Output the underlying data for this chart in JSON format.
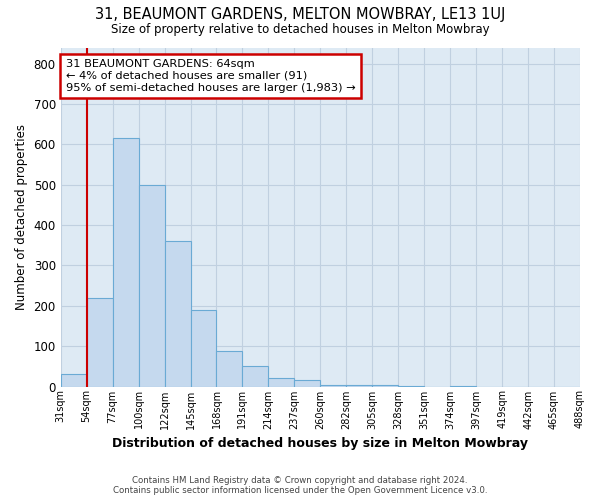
{
  "title": "31, BEAUMONT GARDENS, MELTON MOWBRAY, LE13 1UJ",
  "subtitle": "Size of property relative to detached houses in Melton Mowbray",
  "xlabel": "Distribution of detached houses by size in Melton Mowbray",
  "ylabel": "Number of detached properties",
  "footer_line1": "Contains HM Land Registry data © Crown copyright and database right 2024.",
  "footer_line2": "Contains public sector information licensed under the Open Government Licence v3.0.",
  "bar_values": [
    30,
    220,
    615,
    500,
    360,
    190,
    88,
    50,
    22,
    15,
    3,
    3,
    3,
    2,
    0,
    2,
    0,
    0,
    0,
    0
  ],
  "bin_labels": [
    "31sqm",
    "54sqm",
    "77sqm",
    "100sqm",
    "122sqm",
    "145sqm",
    "168sqm",
    "191sqm",
    "214sqm",
    "237sqm",
    "260sqm",
    "282sqm",
    "305sqm",
    "328sqm",
    "351sqm",
    "374sqm",
    "397sqm",
    "419sqm",
    "442sqm",
    "465sqm",
    "488sqm"
  ],
  "bar_color": "#c5d9ee",
  "bar_edge_color": "#6aaad4",
  "grid_color": "#c0d0e0",
  "background_color": "#deeaf4",
  "property_line_color": "#cc0000",
  "property_line_x": 1,
  "annotation_line1": "31 BEAUMONT GARDENS: 64sqm",
  "annotation_line2": "← 4% of detached houses are smaller (91)",
  "annotation_line3": "95% of semi-detached houses are larger (1,983) →",
  "annotation_box_color": "#cc0000",
  "ylim": [
    0,
    840
  ],
  "yticks": [
    0,
    100,
    200,
    300,
    400,
    500,
    600,
    700,
    800
  ]
}
